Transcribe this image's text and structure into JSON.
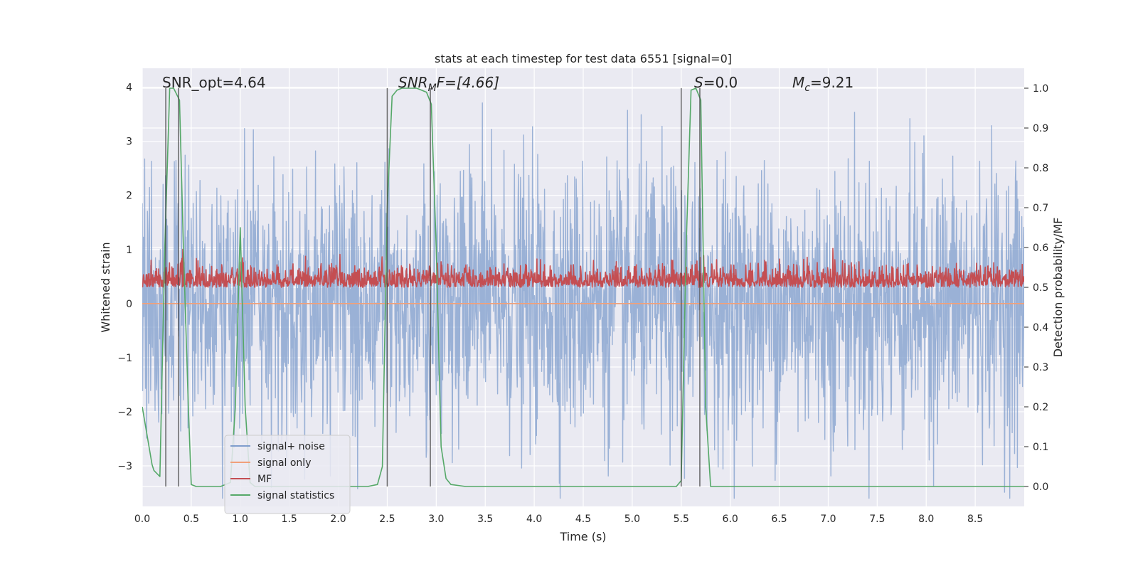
{
  "chart_data": {
    "type": "line",
    "title": "stats at each timestep for test data 6551 [signal=0]",
    "xlabel": "Time (s)",
    "ylabel": "Whitened strain",
    "y2label": "Detection probability/MF",
    "xlim": [
      0,
      9.0
    ],
    "ylim": [
      -3.75,
      4.35
    ],
    "y2lim": [
      -0.05,
      1.05
    ],
    "xticks": [
      "0.0",
      "0.5",
      "1.0",
      "1.5",
      "2.0",
      "2.5",
      "3.0",
      "3.5",
      "4.0",
      "4.5",
      "5.0",
      "5.5",
      "6.0",
      "6.5",
      "7.0",
      "7.5",
      "8.0",
      "8.5"
    ],
    "yticks": [
      "4",
      "3",
      "2",
      "1",
      "0",
      "−1",
      "−2",
      "−3"
    ],
    "y2ticks": [
      "1.0",
      "0.9",
      "0.8",
      "0.7",
      "0.6",
      "0.5",
      "0.4",
      "0.3",
      "0.2",
      "0.1",
      "0.0"
    ],
    "grid": true,
    "legend_position": "lower-left",
    "annotations": {
      "snr_opt": "SNR_opt=4.64",
      "snr_mf_main": "SNR",
      "snr_mf_sub": "M",
      "snr_mf_tail": "F=[4.66]",
      "s_main": "S",
      "s_tail": "=0.0",
      "mc_main": "M",
      "mc_sub": "c",
      "mc_tail": "=9.21"
    },
    "series": [
      {
        "name": "signal+ noise",
        "color": "#7f9dcc",
        "axis": "left",
        "kind": "noise",
        "approx_std": 1.25
      },
      {
        "name": "signal only",
        "color": "#f0a07a",
        "axis": "left",
        "kind": "flat",
        "values": [
          0
        ]
      },
      {
        "name": "MF",
        "color": "#c44e52",
        "axis": "right",
        "kind": "noise",
        "approx_baseline": 0.5,
        "approx_peak": 0.6
      },
      {
        "name": "signal statistics",
        "color": "#55a868",
        "axis": "right",
        "kind": "line",
        "x": [
          0.0,
          0.1,
          0.12,
          0.18,
          0.23,
          0.28,
          0.32,
          0.38,
          0.42,
          0.47,
          0.5,
          0.55,
          0.8,
          0.9,
          0.95,
          1.0,
          1.05,
          1.1,
          1.15,
          2.3,
          2.4,
          2.45,
          2.5,
          2.55,
          2.6,
          2.65,
          2.8,
          2.9,
          2.95,
          3.0,
          3.05,
          3.1,
          3.15,
          3.3,
          5.45,
          5.5,
          5.55,
          5.6,
          5.65,
          5.7,
          5.75,
          5.8,
          9.0
        ],
        "values": [
          0.2,
          0.055,
          0.04,
          0.025,
          0.6,
          1.0,
          1.0,
          0.97,
          0.6,
          0.2,
          0.005,
          0.0,
          0.0,
          0.01,
          0.2,
          0.65,
          0.2,
          0.01,
          0.0,
          0.0,
          0.005,
          0.05,
          0.7,
          0.98,
          0.995,
          1.0,
          1.0,
          0.99,
          0.96,
          0.6,
          0.1,
          0.02,
          0.005,
          0.0,
          0.0,
          0.015,
          0.6,
          0.995,
          1.0,
          0.97,
          0.2,
          0.0,
          0.0
        ]
      }
    ],
    "vlines_x": [
      0.24,
      0.37,
      2.5,
      2.94,
      5.5,
      5.69
    ]
  }
}
